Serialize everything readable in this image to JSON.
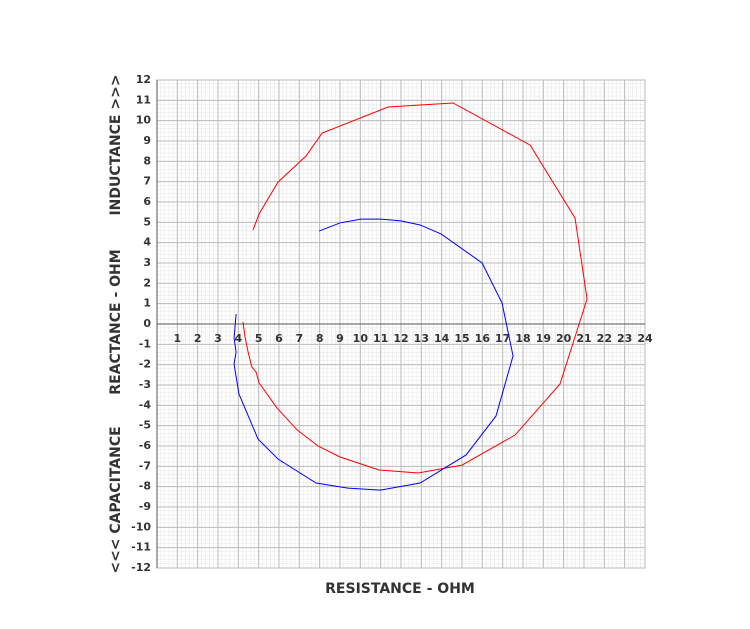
{
  "chart_data": {
    "type": "line",
    "x_label": "RESISTANCE - OHM",
    "y_labels": [
      "INDUCTANCE >>>",
      "REACTANCE - OHM",
      "<<< CAPACITANCE"
    ],
    "xlim": [
      0,
      24
    ],
    "ylim": [
      -12,
      12
    ],
    "xticks": [
      1,
      2,
      3,
      4,
      5,
      6,
      7,
      8,
      9,
      10,
      11,
      12,
      13,
      14,
      15,
      16,
      17,
      18,
      19,
      20,
      21,
      22,
      23,
      24
    ],
    "yticks": [
      -12,
      -11,
      -10,
      -9,
      -8,
      -7,
      -6,
      -5,
      -4,
      -3,
      -2,
      -1,
      0,
      1,
      2,
      3,
      4,
      5,
      6,
      7,
      8,
      9,
      10,
      11,
      12
    ],
    "grid": true,
    "series": [
      {
        "color": "#ff0000",
        "x": [
          4.72,
          5.02,
          5.95,
          7.33,
          8.12,
          11.36,
          14.56,
          18.35,
          20.56,
          21.15,
          19.82,
          17.61,
          15.0,
          12.84,
          10.92,
          9.0,
          7.92,
          6.89,
          5.9,
          5.02,
          4.87,
          4.67,
          4.48,
          4.33,
          4.23
        ],
        "values": [
          4.62,
          5.41,
          6.98,
          8.26,
          9.39,
          10.67,
          10.87,
          8.8,
          5.21,
          1.23,
          -2.95,
          -5.46,
          -6.94,
          -7.33,
          -7.18,
          -6.54,
          -6.0,
          -5.21,
          -4.13,
          -2.9,
          -2.36,
          -2.12,
          -1.38,
          -0.64,
          0.1
        ]
      },
      {
        "color": "#0000ff",
        "x": [
          7.97,
          9.0,
          10.03,
          10.97,
          12.0,
          12.94,
          13.97,
          15.99,
          16.97,
          17.51,
          16.67,
          15.2,
          12.94,
          10.97,
          9.39,
          7.82,
          5.95,
          4.97,
          4.03,
          3.79,
          3.89,
          3.79,
          3.89
        ],
        "values": [
          4.57,
          4.97,
          5.16,
          5.16,
          5.07,
          4.87,
          4.43,
          3.0,
          1.03,
          -1.57,
          -4.53,
          -6.44,
          -7.82,
          -8.17,
          -8.07,
          -7.82,
          -6.64,
          -5.66,
          -3.44,
          -1.97,
          -1.38,
          -0.69,
          0.49
        ]
      }
    ]
  }
}
